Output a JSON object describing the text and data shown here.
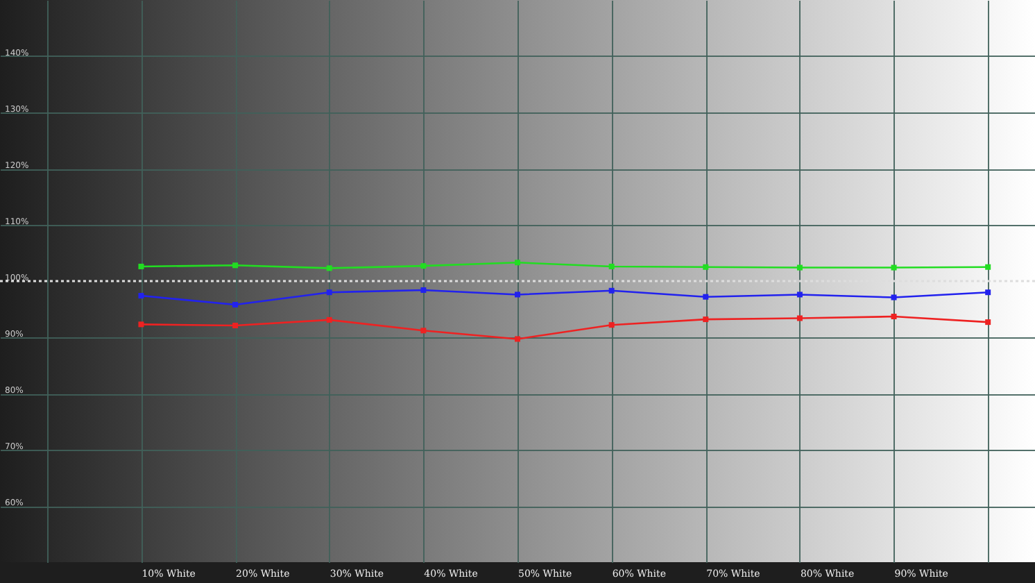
{
  "chart_data": {
    "type": "line",
    "categories": [
      "10% White",
      "20% White",
      "30% White",
      "40% White",
      "50% White",
      "60% White",
      "70% White",
      "80% White",
      "90% White",
      null
    ],
    "series": [
      {
        "color": "#22dd22",
        "values": [
          102.6,
          102.8,
          102.3,
          102.7,
          103.3,
          102.6,
          102.5,
          102.4,
          102.4,
          102.5
        ]
      },
      {
        "color": "#2222ee",
        "values": [
          97.4,
          95.8,
          98.0,
          98.4,
          97.6,
          98.3,
          97.2,
          97.6,
          97.1,
          98.0
        ]
      },
      {
        "color": "#ee2222",
        "values": [
          92.3,
          92.1,
          93.1,
          91.2,
          89.7,
          92.2,
          93.2,
          93.4,
          93.7,
          92.7
        ]
      }
    ],
    "ylim": [
      50,
      150
    ],
    "yticks": [
      {
        "value": 60,
        "label": "60%"
      },
      {
        "value": 70,
        "label": "70%"
      },
      {
        "value": 80,
        "label": "80%"
      },
      {
        "value": 90,
        "label": "90%"
      },
      {
        "value": 100,
        "label": "100%"
      },
      {
        "value": 110,
        "label": "110%"
      },
      {
        "value": 120,
        "label": "120%"
      },
      {
        "value": 130,
        "label": "130%"
      },
      {
        "value": 140,
        "label": "140%"
      }
    ],
    "ref_lines": [
      {
        "axis": "y",
        "value": 100,
        "color": "#dddddd",
        "line_style": "dotted"
      }
    ],
    "grid": true,
    "marker": "square",
    "line_style": "solid"
  }
}
